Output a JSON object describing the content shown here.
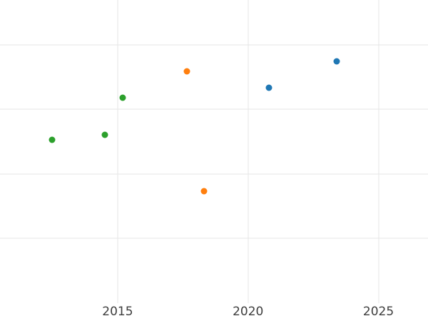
{
  "chart_data": {
    "type": "scatter",
    "title": "",
    "xlabel": "",
    "ylabel": "",
    "grid": true,
    "legend_position": "none",
    "x_tick_labels": [
      "2015",
      "2020",
      "2025"
    ],
    "x_ticks": [
      2015,
      2020,
      2025
    ],
    "xlim": [
      2010.49,
      2026.9
    ],
    "ylim": [
      0,
      4.69
    ],
    "y_gridlines": [
      1,
      2,
      3,
      4
    ],
    "y_axis_note": "y-axis tick labels are cropped out of view; y values estimated in gridline units (1 unit = spacing between visible horizontal gridlines, counted up from the bottom of the plot)",
    "marker_size_px": 9,
    "series": [
      {
        "name": "green",
        "color": "#2ca02c",
        "points": [
          {
            "x": 2012.5,
            "y": 2.53
          },
          {
            "x": 2014.5,
            "y": 2.6
          },
          {
            "x": 2015.2,
            "y": 3.18
          }
        ]
      },
      {
        "name": "orange",
        "color": "#ff7f0e",
        "points": [
          {
            "x": 2017.65,
            "y": 3.59
          },
          {
            "x": 2018.3,
            "y": 1.73
          }
        ]
      },
      {
        "name": "blue",
        "color": "#1f77b4",
        "points": [
          {
            "x": 2020.8,
            "y": 3.33
          },
          {
            "x": 2023.4,
            "y": 3.74
          }
        ]
      }
    ]
  },
  "styles": {
    "background_color": "#ffffff",
    "gridline_color": "#e6e6e6",
    "tick_label_color": "#3d3d3d"
  }
}
